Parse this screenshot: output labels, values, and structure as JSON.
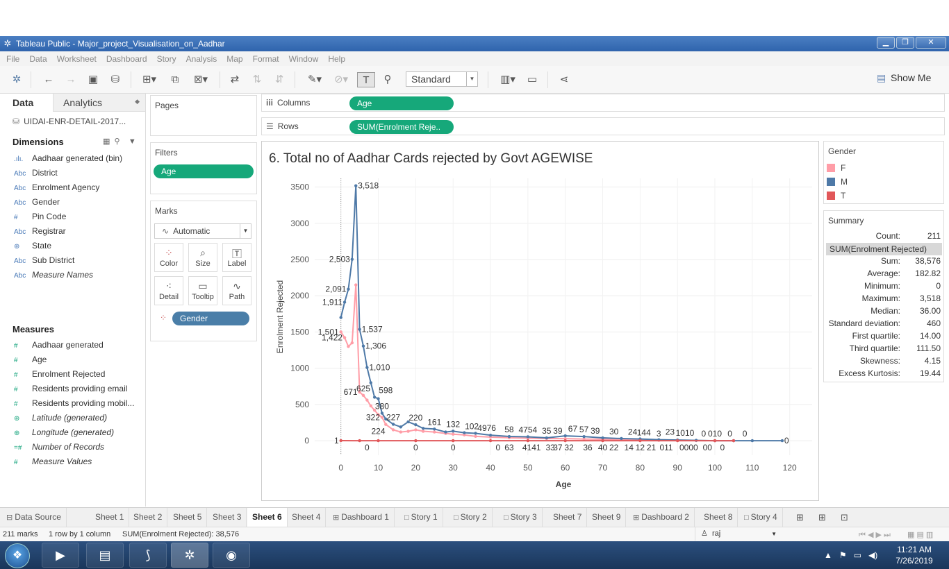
{
  "window": {
    "title": "Tableau Public - Major_project_Visualisation_on_Aadhar"
  },
  "menu": [
    "File",
    "Data",
    "Worksheet",
    "Dashboard",
    "Story",
    "Analysis",
    "Map",
    "Format",
    "Window",
    "Help"
  ],
  "toolbar": {
    "fit": "Standard",
    "show_me": "Show Me"
  },
  "left": {
    "tab_data": "Data",
    "tab_analytics": "Analytics",
    "datasource": "UIDAI-ENR-DETAIL-2017...",
    "dimensions_title": "Dimensions",
    "dimensions": [
      {
        "icon": ".ılı.",
        "label": "Aadhaar generated (bin)"
      },
      {
        "icon": "Abc",
        "label": "District"
      },
      {
        "icon": "Abc",
        "label": "Enrolment Agency"
      },
      {
        "icon": "Abc",
        "label": "Gender"
      },
      {
        "icon": "#",
        "label": "Pin Code"
      },
      {
        "icon": "Abc",
        "label": "Registrar"
      },
      {
        "icon": "⊕",
        "label": "State"
      },
      {
        "icon": "Abc",
        "label": "Sub District"
      },
      {
        "icon": "Abc",
        "label": "Measure Names"
      }
    ],
    "measures_title": "Measures",
    "measures": [
      {
        "icon": "#",
        "label": "Aadhaar generated"
      },
      {
        "icon": "#",
        "label": "Age"
      },
      {
        "icon": "#",
        "label": "Enrolment Rejected"
      },
      {
        "icon": "#",
        "label": "Residents providing email"
      },
      {
        "icon": "#",
        "label": "Residents providing mobil..."
      },
      {
        "icon": "⊕",
        "label": "Latitude (generated)"
      },
      {
        "icon": "⊕",
        "label": "Longitude (generated)"
      },
      {
        "icon": "=#",
        "label": "Number of Records"
      },
      {
        "icon": "#",
        "label": "Measure Values"
      }
    ]
  },
  "shelves": {
    "pages": "Pages",
    "filters": "Filters",
    "filter_pill": "Age",
    "marks": "Marks",
    "mark_type": "Automatic",
    "mark_buttons": [
      "Color",
      "Size",
      "Label",
      "Detail",
      "Tooltip",
      "Path"
    ],
    "mark_pill": "Gender",
    "columns": "Columns",
    "columns_pill": "Age",
    "rows": "Rows",
    "rows_pill": "SUM(Enrolment Reje.."
  },
  "chart_data": {
    "type": "line",
    "title": "6. Total no of Aadhar Cards rejected by Govt AGEWISE",
    "xlabel": "Age",
    "ylabel": "Enrolment Rejected",
    "xlim": [
      -7,
      126
    ],
    "ylim": [
      -200,
      3620
    ],
    "xticks": [
      0,
      10,
      20,
      30,
      40,
      50,
      60,
      70,
      80,
      90,
      100,
      110,
      120
    ],
    "yticks": [
      0,
      500,
      1000,
      1500,
      2000,
      2500,
      3000,
      3500
    ],
    "series": [
      {
        "name": "M",
        "color": "#4e79a7",
        "x": [
          0,
          1,
          2,
          3,
          4,
          5,
          6,
          7,
          8,
          9,
          10,
          11,
          12,
          14,
          16,
          18,
          20,
          22,
          25,
          28,
          30,
          33,
          36,
          40,
          45,
          50,
          55,
          60,
          65,
          70,
          75,
          80,
          85,
          90,
          95,
          100,
          105,
          110,
          118
        ],
        "y": [
          1700,
          1911,
          2091,
          2503,
          3518,
          1537,
          1306,
          1010,
          800,
          600,
          580,
          380,
          300,
          227,
          190,
          260,
          220,
          170,
          161,
          120,
          132,
          110,
          102,
          76,
          58,
          54,
          39,
          67,
          57,
          39,
          30,
          24,
          14,
          10,
          5,
          0,
          0,
          0,
          0
        ]
      },
      {
        "name": "F",
        "color": "#ff9da7",
        "x": [
          0,
          1,
          2,
          3,
          4,
          5,
          6,
          7,
          8,
          9,
          10,
          11,
          12,
          14,
          16,
          18,
          20,
          22,
          25,
          28,
          30,
          33,
          36,
          40,
          45,
          50,
          55,
          60,
          65,
          70,
          75,
          80,
          85,
          90,
          95,
          100,
          105
        ],
        "y": [
          1501,
          1422,
          1300,
          1350,
          2150,
          671,
          625,
          560,
          480,
          420,
          360,
          322,
          224,
          150,
          120,
          130,
          150,
          130,
          120,
          100,
          90,
          80,
          60,
          50,
          40,
          35,
          30,
          28,
          22,
          20,
          15,
          10,
          5,
          3,
          1,
          0,
          0
        ]
      },
      {
        "name": "T",
        "color": "#e15759",
        "x": [
          0,
          5,
          10,
          20,
          30,
          40,
          50,
          60,
          70,
          80,
          90,
          100,
          105
        ],
        "y": [
          1,
          0,
          0,
          0,
          0,
          0,
          0,
          0,
          0,
          0,
          0,
          0,
          0
        ]
      }
    ],
    "data_labels": [
      {
        "x": 4,
        "y": 3518,
        "text": "3,518",
        "pos": "right"
      },
      {
        "x": 3,
        "y": 2503,
        "text": "2,503",
        "pos": "left"
      },
      {
        "x": 2,
        "y": 2091,
        "text": "2,091",
        "pos": "left"
      },
      {
        "x": 1,
        "y": 1911,
        "text": "1,911",
        "pos": "left"
      },
      {
        "x": 0,
        "y": 1501,
        "text": "1,501",
        "pos": "left"
      },
      {
        "x": 1,
        "y": 1422,
        "text": "1,422",
        "pos": "left"
      },
      {
        "x": 5,
        "y": 1537,
        "text": "1,537",
        "pos": "right"
      },
      {
        "x": 6,
        "y": 1306,
        "text": "1,306",
        "pos": "right"
      },
      {
        "x": 7,
        "y": 1010,
        "text": "1,010",
        "pos": "right"
      },
      {
        "x": 5,
        "y": 671,
        "text": "671",
        "pos": "left"
      },
      {
        "x": 6,
        "y": 625,
        "text": "625",
        "pos": "above"
      },
      {
        "x": 12,
        "y": 598,
        "text": "598",
        "pos": "above"
      },
      {
        "x": 11,
        "y": 380,
        "text": "380",
        "pos": "above"
      },
      {
        "x": 11,
        "y": 322,
        "text": "322",
        "pos": "left"
      },
      {
        "x": 14,
        "y": 227,
        "text": "227",
        "pos": "above"
      },
      {
        "x": 10,
        "y": 224,
        "text": "224",
        "pos": "below"
      },
      {
        "x": 20,
        "y": 220,
        "text": "220",
        "pos": "above"
      },
      {
        "x": 25,
        "y": 161,
        "text": "161",
        "pos": "above"
      },
      {
        "x": 30,
        "y": 132,
        "text": "132",
        "pos": "above"
      },
      {
        "x": 35,
        "y": 102,
        "text": "102",
        "pos": "above"
      },
      {
        "x": 39,
        "y": 76,
        "text": "4976",
        "pos": "above"
      },
      {
        "x": 45,
        "y": 58,
        "text": "58",
        "pos": "above"
      },
      {
        "x": 50,
        "y": 54,
        "text": "4754",
        "pos": "above"
      },
      {
        "x": 55,
        "y": 39,
        "text": "35",
        "pos": "above"
      },
      {
        "x": 58,
        "y": 39,
        "text": "39",
        "pos": "above"
      },
      {
        "x": 62,
        "y": 67,
        "text": "67",
        "pos": "above"
      },
      {
        "x": 65,
        "y": 57,
        "text": "57",
        "pos": "above"
      },
      {
        "x": 68,
        "y": 39,
        "text": "39",
        "pos": "above"
      },
      {
        "x": 73,
        "y": 30,
        "text": "30",
        "pos": "above"
      },
      {
        "x": 78,
        "y": 24,
        "text": "24",
        "pos": "above"
      },
      {
        "x": 81,
        "y": 14,
        "text": "144",
        "pos": "above"
      },
      {
        "x": 85,
        "y": 3,
        "text": "3",
        "pos": "above"
      },
      {
        "x": 88,
        "y": 23,
        "text": "23",
        "pos": "above"
      },
      {
        "x": 92,
        "y": 10,
        "text": "1010",
        "pos": "above"
      },
      {
        "x": 97,
        "y": 0,
        "text": "0",
        "pos": "above"
      },
      {
        "x": 100,
        "y": 0,
        "text": "010",
        "pos": "above"
      },
      {
        "x": 104,
        "y": 0,
        "text": "0",
        "pos": "above"
      },
      {
        "x": 108,
        "y": 0,
        "text": "0",
        "pos": "above"
      },
      {
        "x": 118,
        "y": 0,
        "text": "0",
        "pos": "right"
      },
      {
        "x": 0,
        "y": 1,
        "text": "1",
        "pos": "left"
      },
      {
        "x": 7,
        "y": 0,
        "text": "0",
        "pos": "below"
      },
      {
        "x": 20,
        "y": 0,
        "text": "0",
        "pos": "below"
      },
      {
        "x": 30,
        "y": 0,
        "text": "0",
        "pos": "below"
      },
      {
        "x": 42,
        "y": 0,
        "text": "0",
        "pos": "below"
      },
      {
        "x": 45,
        "y": 0,
        "text": "63",
        "pos": "below"
      },
      {
        "x": 51,
        "y": 0,
        "text": "4141",
        "pos": "below"
      },
      {
        "x": 56,
        "y": 0,
        "text": "33",
        "pos": "below"
      },
      {
        "x": 58,
        "y": 0,
        "text": "37",
        "pos": "below"
      },
      {
        "x": 61,
        "y": 0,
        "text": "32",
        "pos": "below"
      },
      {
        "x": 66,
        "y": 0,
        "text": "36",
        "pos": "below"
      },
      {
        "x": 70,
        "y": 0,
        "text": "40",
        "pos": "below"
      },
      {
        "x": 73,
        "y": 0,
        "text": "22",
        "pos": "below"
      },
      {
        "x": 77,
        "y": 0,
        "text": "14",
        "pos": "below"
      },
      {
        "x": 80,
        "y": 0,
        "text": "12",
        "pos": "below"
      },
      {
        "x": 83,
        "y": 0,
        "text": "21",
        "pos": "below"
      },
      {
        "x": 87,
        "y": 0,
        "text": "011",
        "pos": "below"
      },
      {
        "x": 93,
        "y": 0,
        "text": "0000",
        "pos": "below"
      },
      {
        "x": 98,
        "y": 0,
        "text": "00",
        "pos": "below"
      },
      {
        "x": 102,
        "y": 0,
        "text": "0",
        "pos": "below"
      }
    ]
  },
  "legend": {
    "title": "Gender",
    "items": [
      {
        "label": "F",
        "color": "#ff9da7"
      },
      {
        "label": "M",
        "color": "#4e79a7"
      },
      {
        "label": "T",
        "color": "#e15759"
      }
    ]
  },
  "summary": {
    "title": "Summary",
    "count_label": "Count:",
    "count": "211",
    "measure": "SUM(Enrolment Rejected)",
    "rows": [
      {
        "label": "Sum:",
        "value": "38,576"
      },
      {
        "label": "Average:",
        "value": "182.82"
      },
      {
        "label": "Minimum:",
        "value": "0"
      },
      {
        "label": "Maximum:",
        "value": "3,518"
      },
      {
        "label": "Median:",
        "value": "36.00"
      },
      {
        "label": "Standard deviation:",
        "value": "460"
      },
      {
        "label": "First quartile:",
        "value": "14.00"
      },
      {
        "label": "Third quartile:",
        "value": "111.50"
      },
      {
        "label": "Skewness:",
        "value": "4.15"
      },
      {
        "label": "Excess Kurtosis:",
        "value": "19.44"
      }
    ]
  },
  "sheet_tabs": [
    {
      "icon": "⊟",
      "label": "Data Source"
    },
    {
      "icon": "",
      "label": "Sheet 1"
    },
    {
      "icon": "",
      "label": "Sheet 2"
    },
    {
      "icon": "",
      "label": "Sheet 5"
    },
    {
      "icon": "",
      "label": "Sheet 3"
    },
    {
      "icon": "",
      "label": "Sheet 6",
      "active": true
    },
    {
      "icon": "",
      "label": "Sheet 4"
    },
    {
      "icon": "⊞",
      "label": "Dashboard 1"
    },
    {
      "icon": "□",
      "label": "Story 1"
    },
    {
      "icon": "□",
      "label": "Story 2"
    },
    {
      "icon": "□",
      "label": "Story 3"
    },
    {
      "icon": "",
      "label": "Sheet 7"
    },
    {
      "icon": "",
      "label": "Sheet 9"
    },
    {
      "icon": "⊞",
      "label": "Dashboard 2"
    },
    {
      "icon": "",
      "label": "Sheet 8"
    },
    {
      "icon": "□",
      "label": "Story 4"
    }
  ],
  "status": {
    "marks": "211 marks",
    "grid": "1 row by 1 column",
    "sum": "SUM(Enrolment Rejected): 38,576",
    "user": "raj"
  },
  "taskbar": {
    "time": "11:21 AM",
    "date": "7/26/2019"
  }
}
